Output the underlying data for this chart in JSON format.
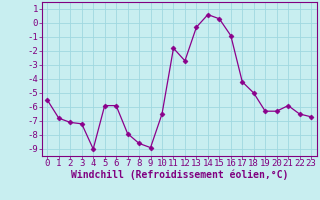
{
  "x": [
    0,
    1,
    2,
    3,
    4,
    5,
    6,
    7,
    8,
    9,
    10,
    11,
    12,
    13,
    14,
    15,
    16,
    17,
    18,
    19,
    20,
    21,
    22,
    23
  ],
  "y": [
    -5.5,
    -6.8,
    -7.1,
    -7.2,
    -9.0,
    -5.9,
    -5.9,
    -7.9,
    -8.6,
    -8.9,
    -6.5,
    -1.8,
    -2.7,
    -0.3,
    0.6,
    0.3,
    -0.9,
    -4.2,
    -5.0,
    -6.3,
    -6.3,
    -5.9,
    -6.5,
    -6.7
  ],
  "line_color": "#8b008b",
  "marker": "D",
  "marker_size": 2.5,
  "bg_color": "#c8eef0",
  "grid_color": "#a0d8e0",
  "xlabel": "Windchill (Refroidissement éolien,°C)",
  "xlabel_color": "#800080",
  "tick_color": "#800080",
  "xlim": [
    -0.5,
    23.5
  ],
  "ylim": [
    -9.5,
    1.5
  ],
  "yticks": [
    1,
    0,
    -1,
    -2,
    -3,
    -4,
    -5,
    -6,
    -7,
    -8,
    -9
  ],
  "xticks": [
    0,
    1,
    2,
    3,
    4,
    5,
    6,
    7,
    8,
    9,
    10,
    11,
    12,
    13,
    14,
    15,
    16,
    17,
    18,
    19,
    20,
    21,
    22,
    23
  ],
  "spine_color": "#800080",
  "tick_font_size": 6.5,
  "xlabel_font_size": 7.0,
  "line_width": 0.9
}
